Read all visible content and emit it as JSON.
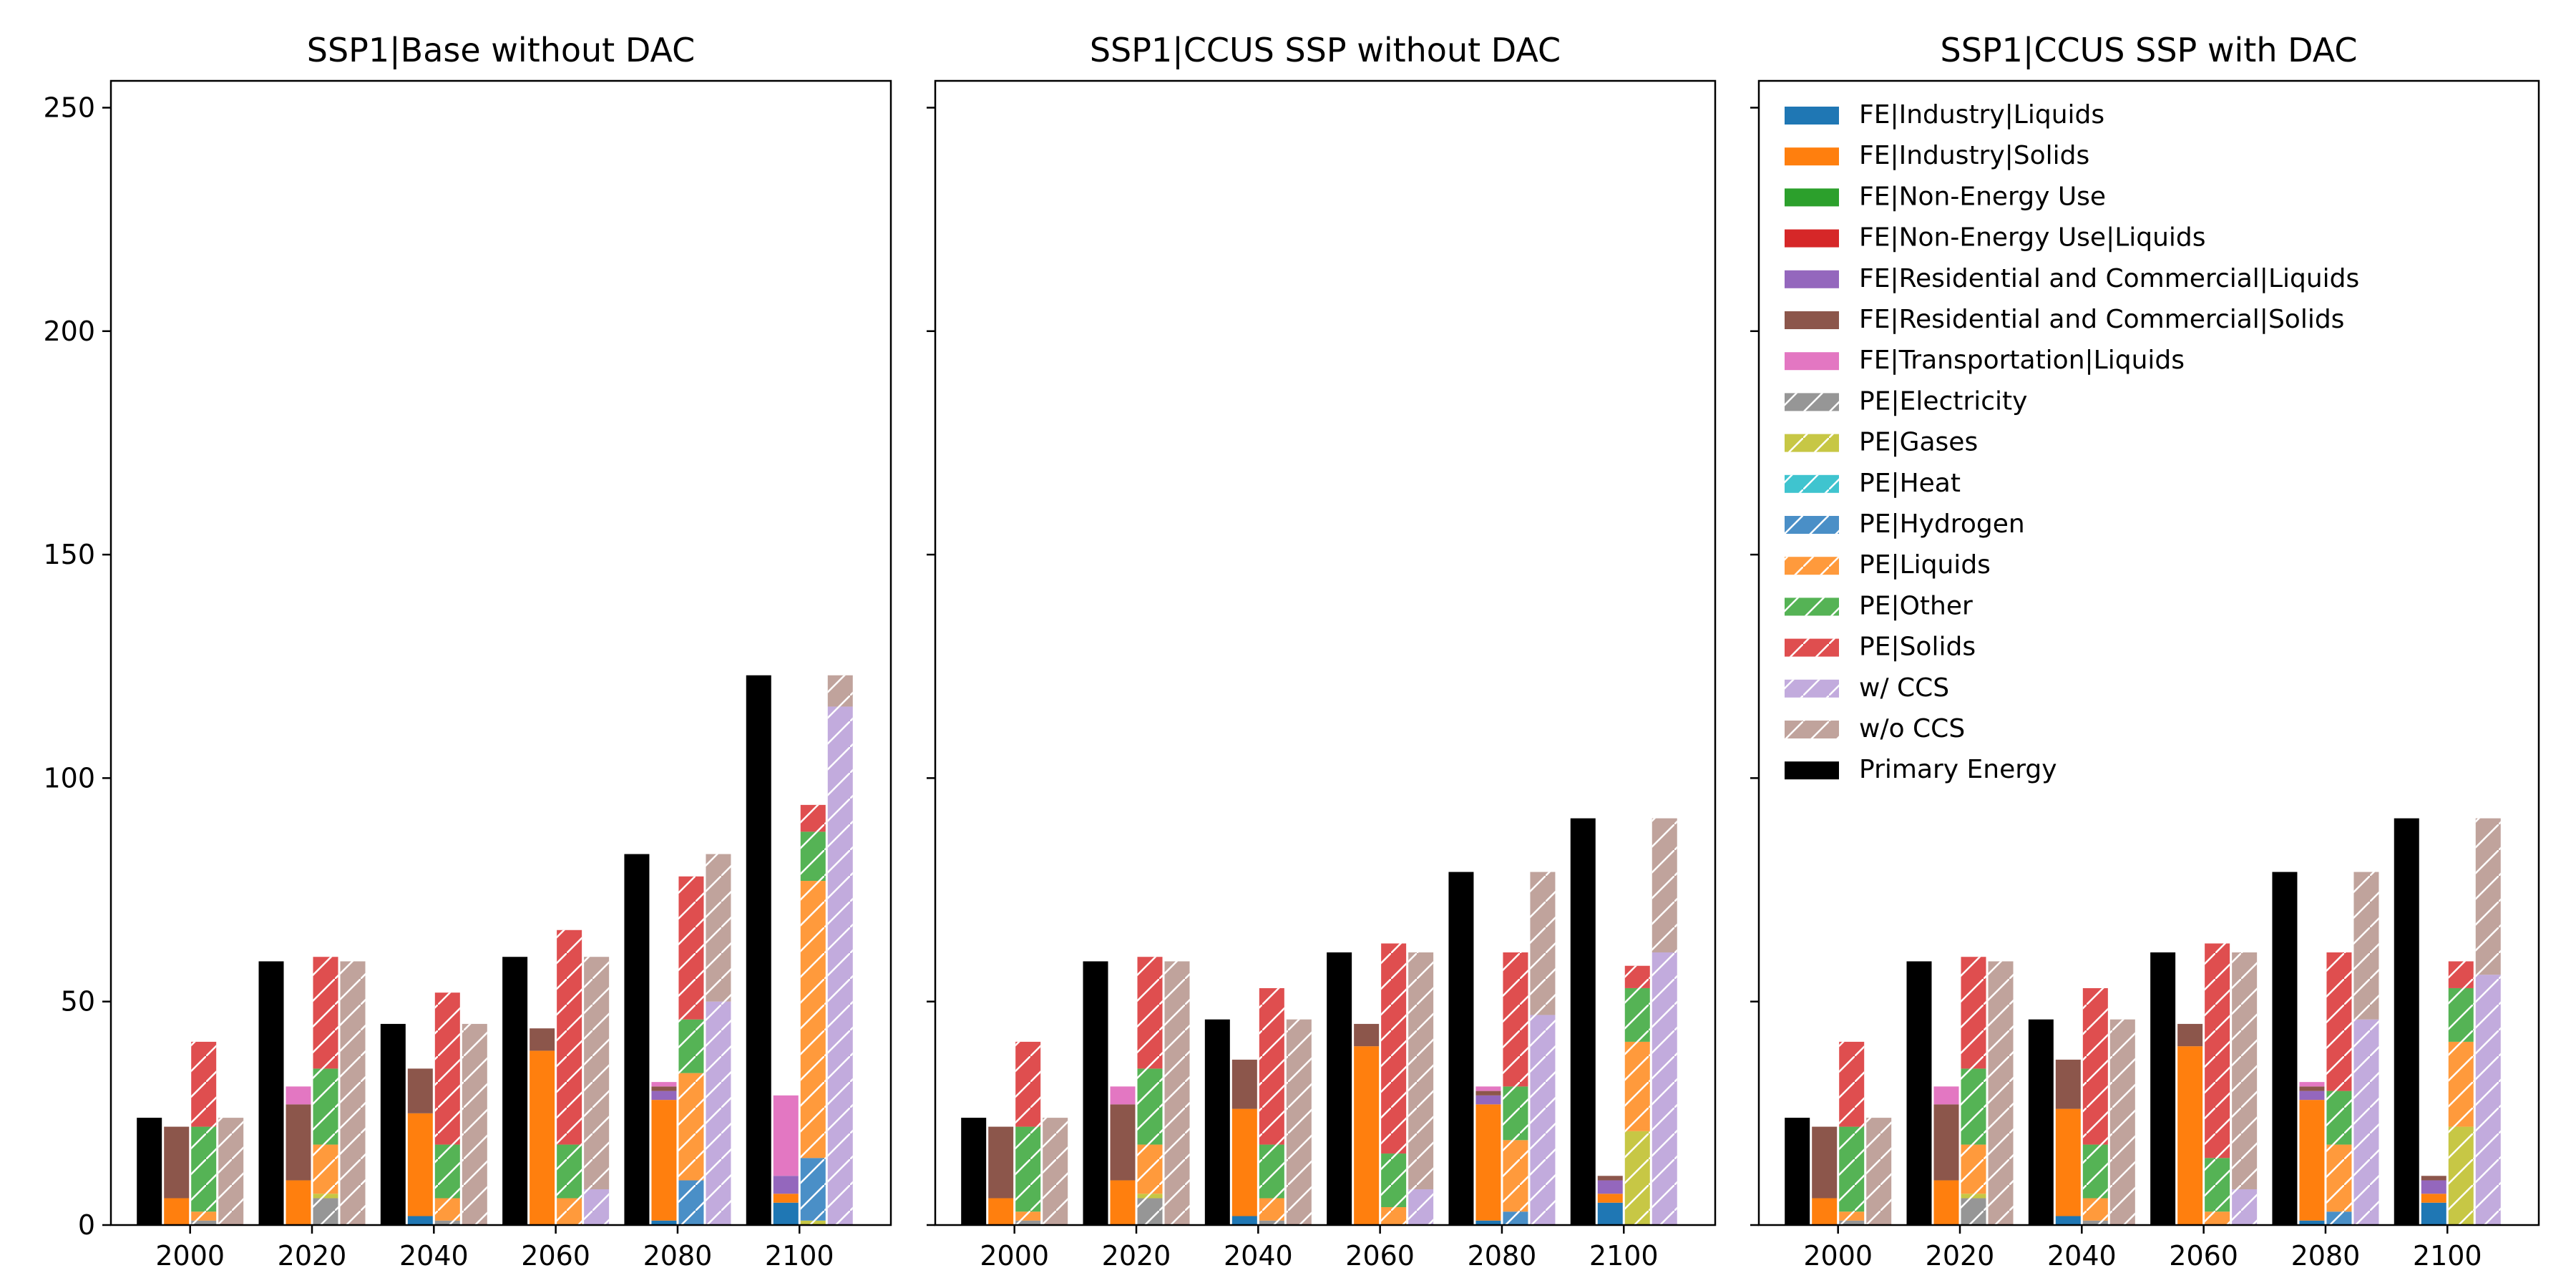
{
  "figure": {
    "panel_titles": [
      "SSP1|Base without DAC",
      "SSP1|CCUS SSP without DAC",
      "SSP1|CCUS SSP with DAC"
    ]
  },
  "chart_data": [
    {
      "type": "bar",
      "title": "SSP1|Base without DAC",
      "xlabel": "",
      "ylabel": "",
      "x": [
        2000,
        2020,
        2040,
        2060,
        2080,
        2100
      ],
      "ylim": [
        0,
        256
      ],
      "yticks": [
        0,
        50,
        100,
        150,
        200,
        250
      ],
      "primary_energy": [
        24,
        59,
        45,
        60,
        83,
        123
      ],
      "final_energy": {
        "FE|Industry|Liquids": [
          0,
          0,
          2,
          0,
          1,
          5
        ],
        "FE|Industry|Solids": [
          6,
          10,
          23,
          39,
          27,
          2
        ],
        "FE|Non-Energy Use": [
          0,
          0,
          0,
          0,
          0,
          0
        ],
        "FE|Non-Energy Use|Liquids": [
          0,
          0,
          0,
          0,
          0,
          0
        ],
        "FE|Residential and Commercial|Liquids": [
          0,
          0,
          0,
          0,
          2,
          4
        ],
        "FE|Residential and Commercial|Solids": [
          16,
          17,
          10,
          5,
          1,
          0
        ],
        "FE|Transportation|Liquids": [
          0,
          4,
          0,
          0,
          1,
          18
        ]
      },
      "primary_energy_split": {
        "PE|Electricity": [
          1,
          6,
          1,
          0,
          0,
          0
        ],
        "PE|Gases": [
          0,
          1,
          0,
          0,
          0,
          1
        ],
        "PE|Heat": [
          0,
          0,
          0,
          0,
          0,
          0
        ],
        "PE|Hydrogen": [
          0,
          0,
          0,
          0,
          10,
          14
        ],
        "PE|Liquids": [
          2,
          11,
          5,
          6,
          24,
          62
        ],
        "PE|Other": [
          19,
          17,
          12,
          12,
          12,
          11
        ],
        "PE|Solids": [
          19,
          25,
          34,
          48,
          32,
          6
        ]
      },
      "ccs_split": {
        "w/ CCS": [
          0,
          0,
          0,
          8,
          50,
          116
        ],
        "w/o CCS": [
          24,
          59,
          45,
          52,
          33,
          7
        ]
      }
    },
    {
      "type": "bar",
      "title": "SSP1|CCUS SSP without DAC",
      "xlabel": "",
      "ylabel": "",
      "x": [
        2000,
        2020,
        2040,
        2060,
        2080,
        2100
      ],
      "ylim": [
        0,
        256
      ],
      "yticks": [
        0,
        50,
        100,
        150,
        200,
        250
      ],
      "primary_energy": [
        24,
        59,
        46,
        61,
        79,
        91
      ],
      "final_energy": {
        "FE|Industry|Liquids": [
          0,
          0,
          2,
          0,
          1,
          5
        ],
        "FE|Industry|Solids": [
          6,
          10,
          24,
          40,
          26,
          2
        ],
        "FE|Non-Energy Use": [
          0,
          0,
          0,
          0,
          0,
          0
        ],
        "FE|Non-Energy Use|Liquids": [
          0,
          0,
          0,
          0,
          0,
          0
        ],
        "FE|Residential and Commercial|Liquids": [
          0,
          0,
          0,
          0,
          2,
          3
        ],
        "FE|Residential and Commercial|Solids": [
          16,
          17,
          11,
          5,
          1,
          1
        ],
        "FE|Transportation|Liquids": [
          0,
          4,
          0,
          0,
          1,
          0
        ]
      },
      "primary_energy_split": {
        "PE|Electricity": [
          1,
          6,
          1,
          0,
          0,
          0
        ],
        "PE|Gases": [
          0,
          1,
          0,
          0,
          0,
          21
        ],
        "PE|Heat": [
          0,
          0,
          0,
          0,
          0,
          0
        ],
        "PE|Hydrogen": [
          0,
          0,
          0,
          0,
          3,
          0
        ],
        "PE|Liquids": [
          2,
          11,
          5,
          4,
          16,
          20
        ],
        "PE|Other": [
          19,
          17,
          12,
          12,
          12,
          12
        ],
        "PE|Solids": [
          19,
          25,
          35,
          47,
          30,
          5
        ]
      },
      "ccs_split": {
        "w/ CCS": [
          0,
          0,
          0,
          8,
          47,
          61
        ],
        "w/o CCS": [
          24,
          59,
          46,
          53,
          32,
          30
        ]
      }
    },
    {
      "type": "bar",
      "title": "SSP1|CCUS SSP with DAC",
      "xlabel": "",
      "ylabel": "",
      "x": [
        2000,
        2020,
        2040,
        2060,
        2080,
        2100
      ],
      "ylim": [
        0,
        256
      ],
      "yticks": [
        0,
        50,
        100,
        150,
        200,
        250
      ],
      "primary_energy": [
        24,
        59,
        46,
        61,
        79,
        91
      ],
      "final_energy": {
        "FE|Industry|Liquids": [
          0,
          0,
          2,
          0,
          1,
          5
        ],
        "FE|Industry|Solids": [
          6,
          10,
          24,
          40,
          27,
          2
        ],
        "FE|Non-Energy Use": [
          0,
          0,
          0,
          0,
          0,
          0
        ],
        "FE|Non-Energy Use|Liquids": [
          0,
          0,
          0,
          0,
          0,
          0
        ],
        "FE|Residential and Commercial|Liquids": [
          0,
          0,
          0,
          0,
          2,
          3
        ],
        "FE|Residential and Commercial|Solids": [
          16,
          17,
          11,
          5,
          1,
          1
        ],
        "FE|Transportation|Liquids": [
          0,
          4,
          0,
          0,
          1,
          0
        ]
      },
      "primary_energy_split": {
        "PE|Electricity": [
          1,
          6,
          1,
          0,
          0,
          0
        ],
        "PE|Gases": [
          0,
          1,
          0,
          0,
          0,
          22
        ],
        "PE|Heat": [
          0,
          0,
          0,
          0,
          0,
          0
        ],
        "PE|Hydrogen": [
          0,
          0,
          0,
          0,
          3,
          0
        ],
        "PE|Liquids": [
          2,
          11,
          5,
          3,
          15,
          19
        ],
        "PE|Other": [
          19,
          17,
          12,
          12,
          12,
          12
        ],
        "PE|Solids": [
          19,
          25,
          35,
          48,
          31,
          6
        ]
      },
      "ccs_split": {
        "w/ CCS": [
          0,
          0,
          0,
          8,
          46,
          56
        ],
        "w/o CCS": [
          24,
          59,
          46,
          53,
          33,
          35
        ]
      }
    }
  ],
  "series_styles": {
    "FE|Industry|Liquids": {
      "color": "#1f77b4",
      "hatch": false
    },
    "FE|Industry|Solids": {
      "color": "#ff7f0e",
      "hatch": false
    },
    "FE|Non-Energy Use": {
      "color": "#2ca02c",
      "hatch": false
    },
    "FE|Non-Energy Use|Liquids": {
      "color": "#d62728",
      "hatch": false
    },
    "FE|Residential and Commercial|Liquids": {
      "color": "#9467bd",
      "hatch": false
    },
    "FE|Residential and Commercial|Solids": {
      "color": "#8c564b",
      "hatch": false
    },
    "FE|Transportation|Liquids": {
      "color": "#e377c2",
      "hatch": false
    },
    "PE|Electricity": {
      "color": "#969696",
      "hatch": true
    },
    "PE|Gases": {
      "color": "#c7c745",
      "hatch": true
    },
    "PE|Heat": {
      "color": "#3fc4cf",
      "hatch": true
    },
    "PE|Hydrogen": {
      "color": "#4a8fc7",
      "hatch": true
    },
    "PE|Liquids": {
      "color": "#ff9a3c",
      "hatch": true
    },
    "PE|Other": {
      "color": "#55b355",
      "hatch": true
    },
    "PE|Solids": {
      "color": "#df4e4f",
      "hatch": true
    },
    "w/ CCS": {
      "color": "#c2abdd",
      "hatch": true
    },
    "w/o CCS": {
      "color": "#c0a39c",
      "hatch": true
    },
    "Primary Energy": {
      "color": "#000000",
      "hatch": false
    }
  },
  "legend": {
    "placement": "upper-left of third panel",
    "entries": [
      "FE|Industry|Liquids",
      "FE|Industry|Solids",
      "FE|Non-Energy Use",
      "FE|Non-Energy Use|Liquids",
      "FE|Residential and Commercial|Liquids",
      "FE|Residential and Commercial|Solids",
      "FE|Transportation|Liquids",
      "PE|Electricity",
      "PE|Gases",
      "PE|Heat",
      "PE|Hydrogen",
      "PE|Liquids",
      "PE|Other",
      "PE|Solids",
      "w/ CCS",
      "w/o CCS",
      "Primary Energy"
    ]
  }
}
